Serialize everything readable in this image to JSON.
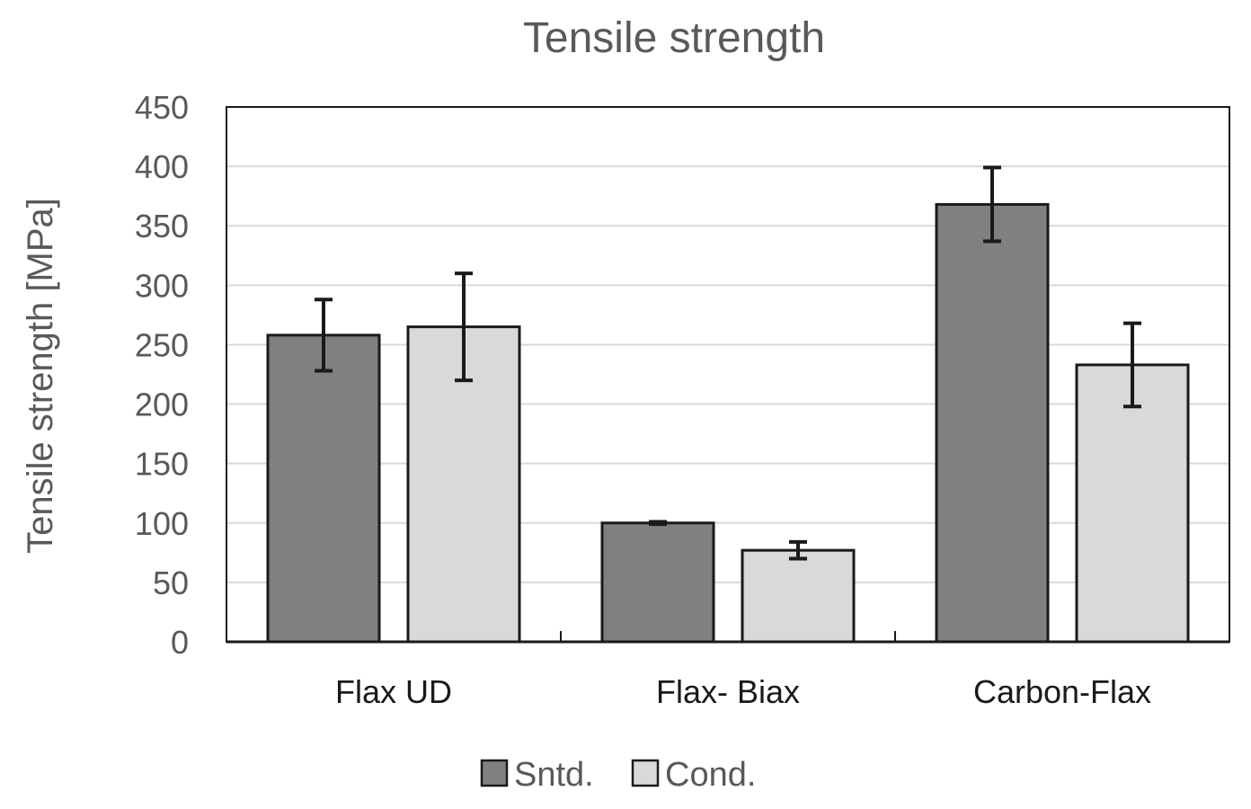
{
  "chart_data": {
    "type": "bar",
    "title": "Tensile strength",
    "xlabel": "",
    "ylabel": "Tensile strength [MPa]",
    "ylim": [
      0,
      450
    ],
    "yticks": [
      "0",
      "50",
      "100",
      "150",
      "200",
      "250",
      "300",
      "350",
      "400",
      "450"
    ],
    "categories": [
      "Flax UD",
      "Flax- Biax",
      "Carbon-Flax"
    ],
    "grid": true,
    "legend_position": "bottom",
    "series": [
      {
        "name": "Sntd.",
        "color": "#808080",
        "values": [
          258,
          100,
          368
        ],
        "errors": [
          30,
          1,
          31
        ]
      },
      {
        "name": "Cond.",
        "color": "#d9d9d9",
        "values": [
          265,
          77,
          233
        ],
        "errors": [
          45,
          7,
          35
        ]
      }
    ]
  }
}
